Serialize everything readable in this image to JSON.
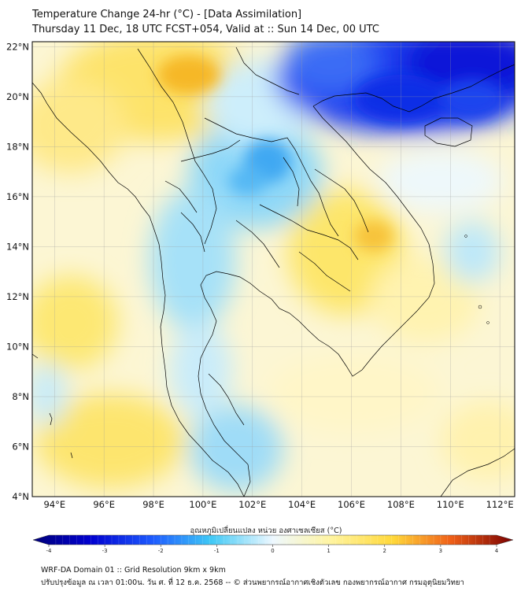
{
  "header": {
    "title_line1": "Temperature Change 24-hr (°C) - [Data Assimilation]",
    "title_line2": "Thursday 11 Dec, 18 UTC FCST+054, Valid at :: Sun 14 Dec, 00 UTC"
  },
  "map": {
    "lat_labels": [
      "22°N",
      "20°N",
      "18°N",
      "16°N",
      "14°N",
      "12°N",
      "10°N",
      "8°N",
      "6°N",
      "4°N"
    ],
    "lon_labels": [
      "94°E",
      "96°E",
      "98°E",
      "100°E",
      "102°E",
      "104°E",
      "106°E",
      "108°E",
      "110°E",
      "112°E"
    ],
    "lat_range": [
      4,
      22.2
    ],
    "lon_range": [
      93.1,
      112.6
    ],
    "grid": true
  },
  "colorbar": {
    "title": "อุณหภูมิเปลี่ยนแปลง หน่วย องศาเซลเซียส (°C)",
    "tick_labels": [
      "-4",
      "-3",
      "-2",
      "-1",
      "0",
      "1",
      "2",
      "3",
      "4"
    ],
    "range": [
      -4,
      4
    ],
    "colors": [
      "#00007a",
      "#0000d0",
      "#1e5cff",
      "#3fc8f5",
      "#e6f6ff",
      "#fffde0",
      "#ffe45a",
      "#f39a1a",
      "#e02a0a",
      "#7a0000"
    ]
  },
  "footer": {
    "line1": "WRF-DA Domain 01 :: Grid Resolution 9km x 9km",
    "line2": "ปรับปรุงข้อมูล ณ เวลา 01:00น. วัน ศ. ที่ 12 ธ.ค. 2568 -- © ส่วนพยากรณ์อากาศเชิงตัวเลข กองพยากรณ์อากาศ กรมอุตุนิยมวิทยา"
  }
}
